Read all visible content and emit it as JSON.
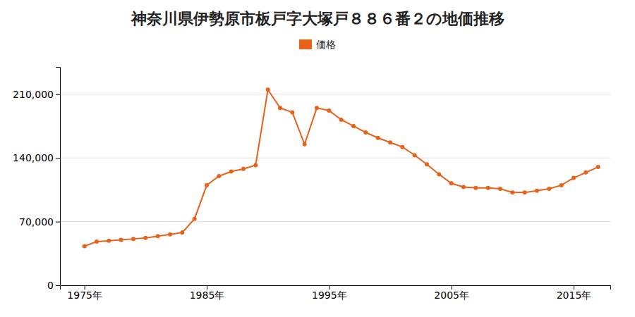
{
  "chart_data": {
    "type": "line",
    "title": "神奈川県伊勢原市板戸字大塚戸８８６番２の地価推移",
    "x": [
      1975,
      1976,
      1977,
      1978,
      1979,
      1980,
      1981,
      1982,
      1983,
      1984,
      1985,
      1986,
      1987,
      1988,
      1989,
      1990,
      1991,
      1992,
      1993,
      1994,
      1995,
      1996,
      1997,
      1998,
      1999,
      2000,
      2001,
      2002,
      2003,
      2004,
      2005,
      2006,
      2007,
      2008,
      2009,
      2010,
      2011,
      2012,
      2013,
      2014,
      2015,
      2016,
      2017
    ],
    "series": [
      {
        "name": "価格",
        "color": "#e8621a",
        "marker": "circle",
        "values": [
          43000,
          48000,
          49000,
          50000,
          51000,
          52000,
          54000,
          56000,
          58000,
          73000,
          110000,
          120000,
          125000,
          128000,
          132000,
          215000,
          195000,
          190000,
          155000,
          195000,
          192000,
          182000,
          175000,
          168000,
          162000,
          157000,
          152000,
          143000,
          133000,
          122000,
          112000,
          108000,
          107000,
          107000,
          106000,
          102000,
          102000,
          104000,
          106000,
          110000,
          118000,
          124000,
          130000
        ]
      }
    ],
    "xlim": [
      1973,
      2018
    ],
    "xticks": [
      {
        "value": 1975,
        "label": "1975年"
      },
      {
        "value": 1985,
        "label": "1985年"
      },
      {
        "value": 1995,
        "label": "1995年"
      },
      {
        "value": 2005,
        "label": "2005年"
      },
      {
        "value": 2015,
        "label": "2015年"
      }
    ],
    "ylim": [
      0,
      240000
    ],
    "yticks": [
      0,
      {
        "value": 70000,
        "label": "70,000"
      },
      {
        "value": 140000,
        "label": "140,000"
      },
      {
        "value": 210000,
        "label": "210,000"
      }
    ],
    "grid": "y",
    "legend": "top"
  }
}
